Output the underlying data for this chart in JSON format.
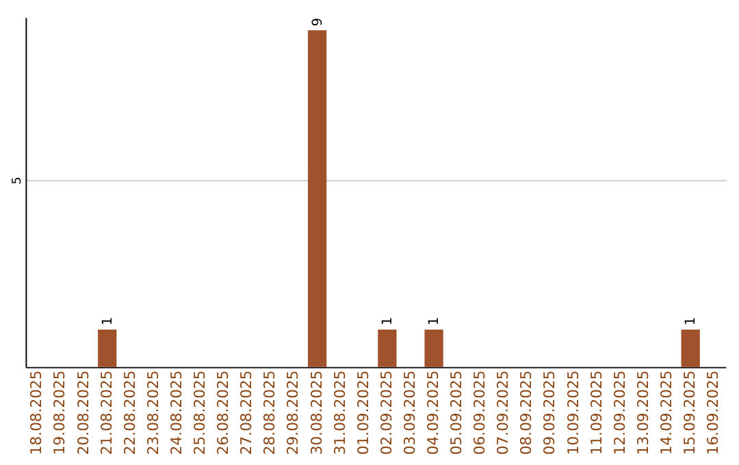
{
  "chart_data": {
    "type": "bar",
    "categories": [
      "18.08.2025",
      "19.08.2025",
      "20.08.2025",
      "21.08.2025",
      "22.08.2025",
      "23.08.2025",
      "24.08.2025",
      "25.08.2025",
      "26.08.2025",
      "27.08.2025",
      "28.08.2025",
      "29.08.2025",
      "30.08.2025",
      "31.08.2025",
      "01.09.2025",
      "02.09.2025",
      "03.09.2025",
      "04.09.2025",
      "05.09.2025",
      "06.09.2025",
      "07.09.2025",
      "08.09.2025",
      "09.09.2025",
      "10.09.2025",
      "11.09.2025",
      "12.09.2025",
      "13.09.2025",
      "14.09.2025",
      "15.09.2025",
      "16.09.2025"
    ],
    "values": [
      0,
      0,
      0,
      1,
      0,
      0,
      0,
      0,
      0,
      0,
      0,
      0,
      9,
      0,
      0,
      1,
      0,
      1,
      0,
      0,
      0,
      0,
      0,
      0,
      0,
      0,
      0,
      0,
      1,
      0
    ],
    "value_labels": [
      null,
      null,
      null,
      "1",
      null,
      null,
      null,
      null,
      null,
      null,
      null,
      null,
      "9",
      null,
      null,
      "1",
      null,
      "1",
      null,
      null,
      null,
      null,
      null,
      null,
      null,
      null,
      null,
      null,
      "1",
      null
    ],
    "color": "#a0522d",
    "ylim": [
      0,
      9.35
    ],
    "yticks": [
      5
    ],
    "grid": "y"
  }
}
